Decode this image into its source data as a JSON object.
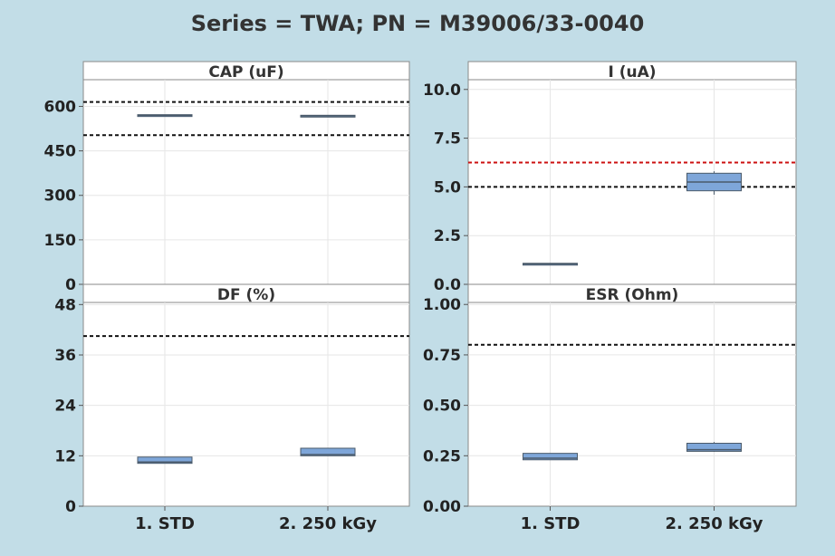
{
  "title": "Series = TWA; PN = M39006/33-0040",
  "chart_data": {
    "type": "boxplot",
    "title": "Series = TWA; PN = M39006/33-0040",
    "categories": [
      "1. STD",
      "2. 250 kGy"
    ],
    "panels": [
      {
        "name": "CAP (uF)",
        "ylim": [
          0,
          690
        ],
        "yticks": [
          0,
          150,
          300,
          450,
          600
        ],
        "ytick_labels": [
          "0",
          "150",
          "300",
          "450",
          "600"
        ],
        "ref_lines": [
          {
            "value": 615,
            "color": "#111111"
          },
          {
            "value": 503,
            "color": "#111111"
          }
        ],
        "boxes": [
          {
            "category": "1. STD",
            "q1": 569,
            "median": 570,
            "q3": 572,
            "whisker_low": 569,
            "whisker_high": 572
          },
          {
            "category": "2. 250 kGy",
            "q1": 567,
            "median": 568,
            "q3": 570,
            "whisker_low": 567,
            "whisker_high": 570
          }
        ]
      },
      {
        "name": "I (uA)",
        "ylim": [
          0,
          10.5
        ],
        "yticks": [
          0,
          2.5,
          5,
          7.5,
          10
        ],
        "ytick_labels": [
          "0.0",
          "2.5",
          "5.0",
          "7.5",
          "10.0"
        ],
        "ref_lines": [
          {
            "value": 6.25,
            "color": "#cc1111"
          },
          {
            "value": 5.0,
            "color": "#111111"
          }
        ],
        "boxes": [
          {
            "category": "1. STD",
            "q1": 1.02,
            "median": 1.05,
            "q3": 1.08,
            "whisker_low": 1.02,
            "whisker_high": 1.08
          },
          {
            "category": "2. 250 kGy",
            "q1": 4.8,
            "median": 5.25,
            "q3": 5.7,
            "whisker_low": 4.6,
            "whisker_high": 5.8
          }
        ]
      },
      {
        "name": "DF (%)",
        "ylim": [
          0,
          48.5
        ],
        "yticks": [
          0,
          12,
          24,
          36,
          48
        ],
        "ytick_labels": [
          "0",
          "12",
          "24",
          "36",
          "48"
        ],
        "ref_lines": [
          {
            "value": 40.5,
            "color": "#111111"
          }
        ],
        "boxes": [
          {
            "category": "1. STD",
            "q1": 10.2,
            "median": 10.5,
            "q3": 11.7,
            "whisker_low": 10.2,
            "whisker_high": 11.7
          },
          {
            "category": "2. 250 kGy",
            "q1": 12.0,
            "median": 12.3,
            "q3": 13.8,
            "whisker_low": 12.0,
            "whisker_high": 13.8
          }
        ]
      },
      {
        "name": "ESR (Ohm)",
        "ylim": [
          0,
          1.01
        ],
        "yticks": [
          0,
          0.25,
          0.5,
          0.75,
          1.0
        ],
        "ytick_labels": [
          "0.00",
          "0.25",
          "0.50",
          "0.75",
          "1.00"
        ],
        "ref_lines": [
          {
            "value": 0.8,
            "color": "#111111"
          }
        ],
        "boxes": [
          {
            "category": "1. STD",
            "q1": 0.23,
            "median": 0.238,
            "q3": 0.262,
            "whisker_low": 0.23,
            "whisker_high": 0.262
          },
          {
            "category": "2. 250 kGy",
            "q1": 0.272,
            "median": 0.28,
            "q3": 0.312,
            "whisker_low": 0.27,
            "whisker_high": 0.318
          }
        ]
      }
    ]
  },
  "colors": {
    "background": "#c2dde7",
    "box_fill": "#7ea6d9",
    "box_stroke": "#4a5a6a",
    "grid": "#e6e6e6",
    "reference_line": "#111111",
    "upper_limit_line": "#cc1111"
  }
}
